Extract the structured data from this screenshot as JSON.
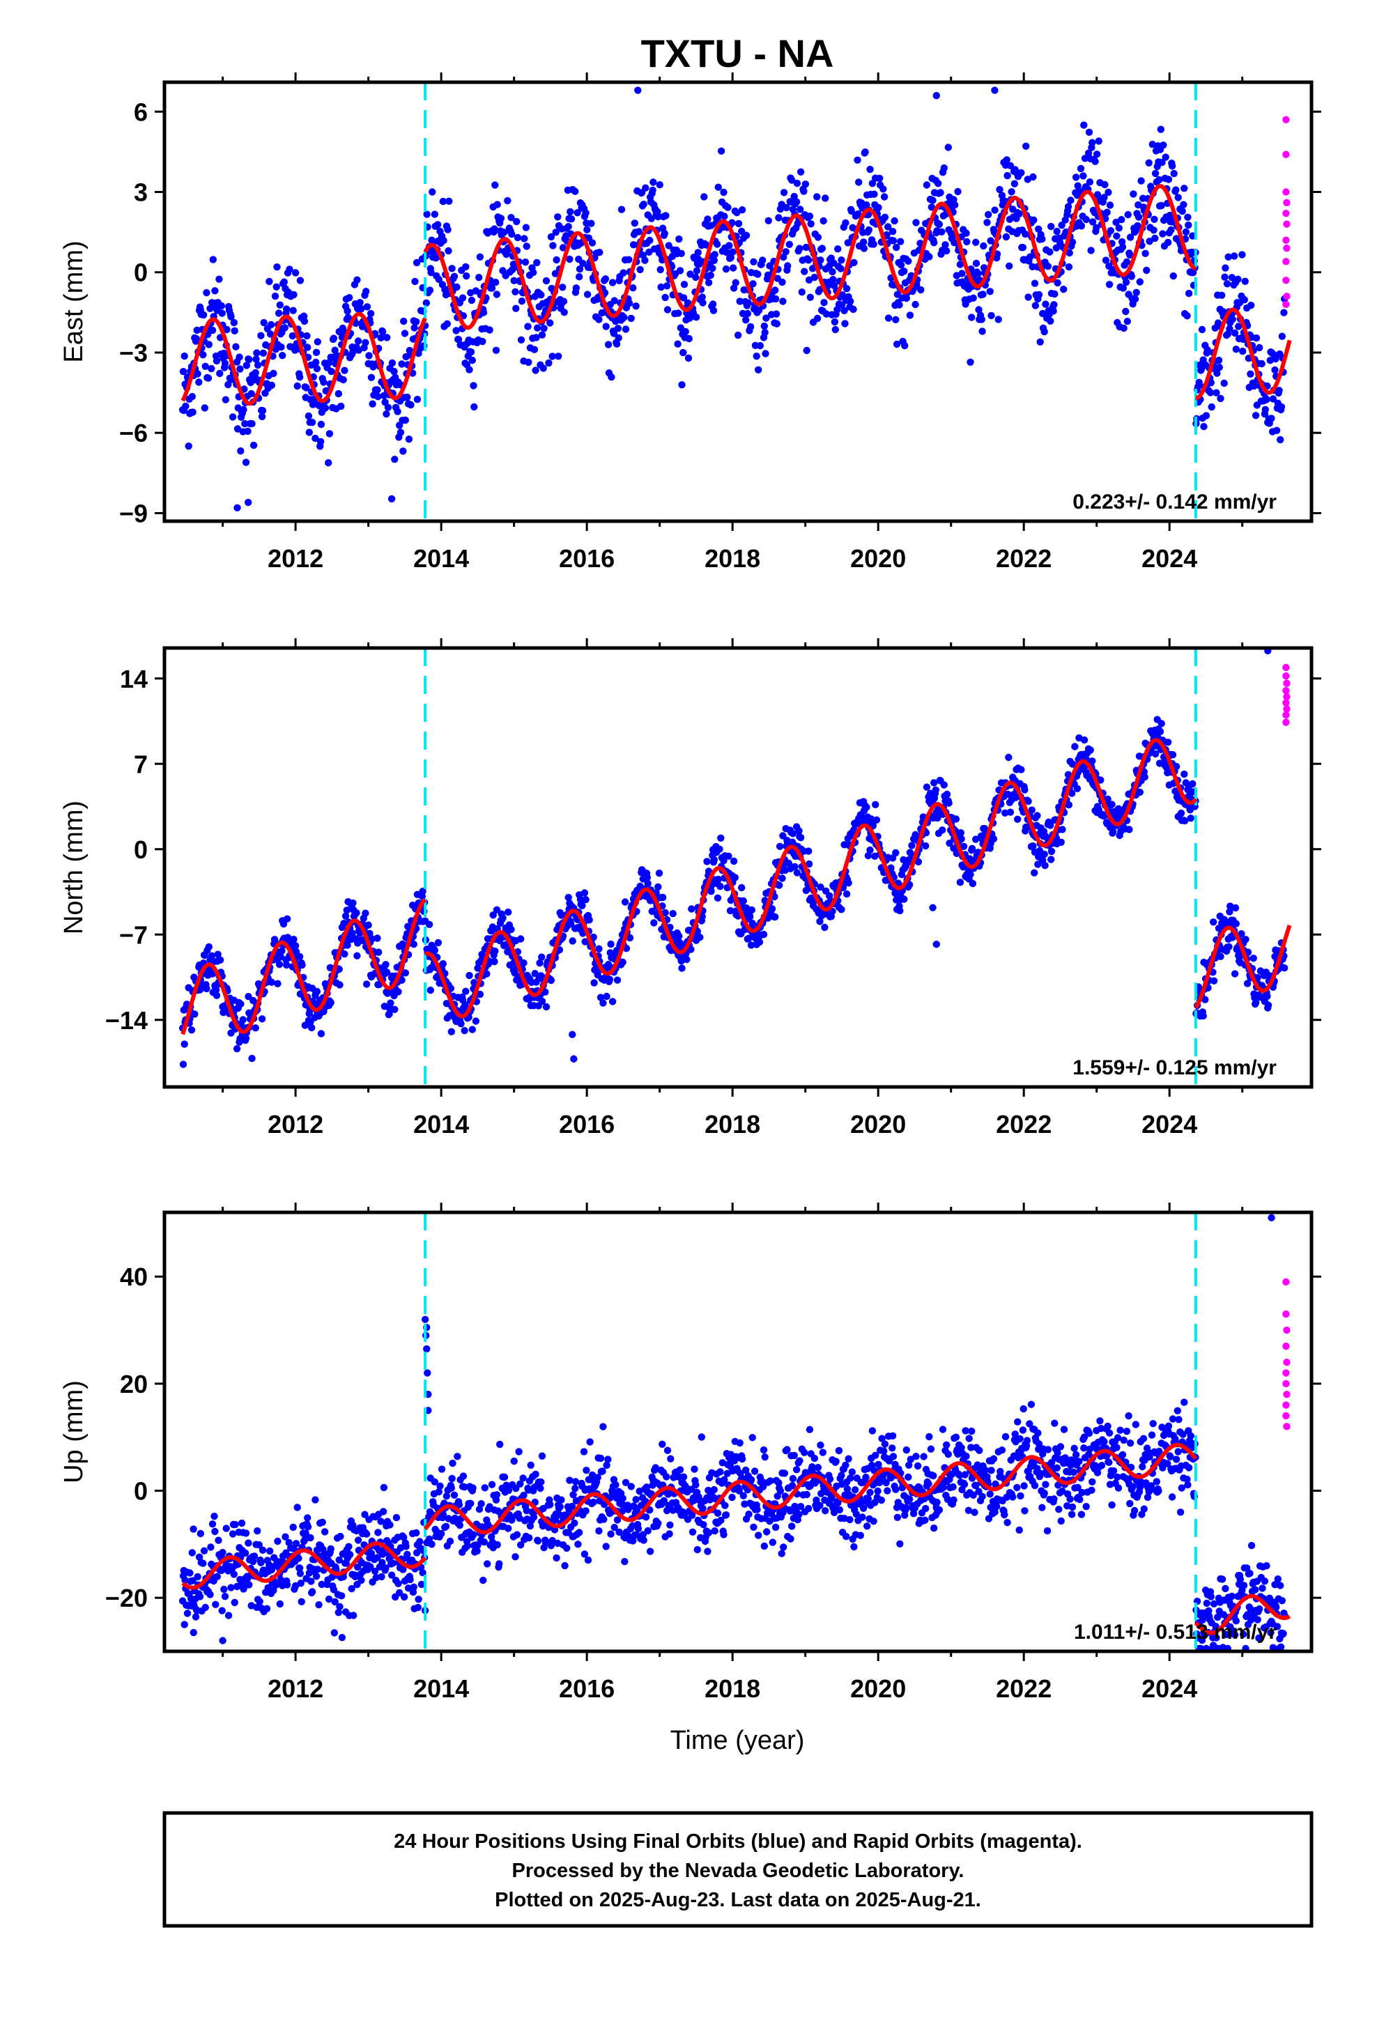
{
  "chart_data": [
    {
      "type": "scatter",
      "title": "TXTU - NA",
      "ylabel": "East (mm)",
      "xlabel": "",
      "xlim": [
        2010.2,
        2025.95
      ],
      "ylim": [
        -9.3,
        7.1
      ],
      "yticks": [
        6,
        3,
        0,
        -3,
        -6,
        -9
      ],
      "xticks": [
        2012,
        2014,
        2016,
        2018,
        2020,
        2022,
        2024
      ],
      "rate_label": "0.223+/- 0.142 mm/yr",
      "break_lines": [
        2013.78,
        2024.36
      ],
      "colors": {
        "final": "#0000ff",
        "rapid": "#ff00ff",
        "model": "#ff0000",
        "break": "#00e5ee"
      },
      "model": {
        "segments": [
          {
            "start": 2010.45,
            "end": 2013.78,
            "offset": -3.4,
            "slope": 0.1,
            "amp": 1.6,
            "phase": 0.62
          },
          {
            "start": 2013.78,
            "end": 2024.36,
            "offset": -0.6,
            "slope": 0.22,
            "amp": 1.6,
            "phase": 0.62
          },
          {
            "start": 2024.36,
            "end": 2025.65,
            "offset": -3.1,
            "slope": 0.2,
            "amp": 1.6,
            "phase": 0.62
          }
        ]
      },
      "series": [
        {
          "name": "Final Orbits",
          "noise": 1.1,
          "outliers": [
            [
              2011.2,
              -8.8
            ],
            [
              2011.35,
              -8.6
            ],
            [
              2016.7,
              6.8
            ],
            [
              2021.6,
              6.8
            ],
            [
              2020.8,
              6.6
            ]
          ]
        },
        {
          "name": "Rapid Orbits",
          "points": [
            [
              2025.6,
              5.7
            ],
            [
              2025.6,
              4.4
            ],
            [
              2025.6,
              3.0
            ],
            [
              2025.61,
              2.6
            ],
            [
              2025.6,
              2.2
            ],
            [
              2025.61,
              1.8
            ],
            [
              2025.6,
              1.2
            ],
            [
              2025.61,
              0.9
            ],
            [
              2025.6,
              0.4
            ],
            [
              2025.6,
              -0.3
            ],
            [
              2025.61,
              -0.9
            ],
            [
              2025.6,
              -1.2
            ]
          ]
        }
      ]
    },
    {
      "type": "scatter",
      "title": "",
      "ylabel": "North (mm)",
      "xlabel": "",
      "xlim": [
        2010.2,
        2025.95
      ],
      "ylim": [
        -19.5,
        16.5
      ],
      "yticks": [
        14,
        7,
        0,
        -7,
        -14
      ],
      "xticks": [
        2012,
        2014,
        2016,
        2018,
        2020,
        2022,
        2024
      ],
      "rate_label": "1.559+/- 0.125 mm/yr",
      "break_lines": [
        2013.78,
        2024.36
      ],
      "colors": {
        "final": "#0000ff",
        "rapid": "#ff00ff",
        "model": "#ff0000",
        "break": "#00e5ee"
      },
      "model": {
        "segments": [
          {
            "start": 2010.45,
            "end": 2013.78,
            "offset": -13.3,
            "slope": 1.8,
            "amp": 3.2,
            "phase": 0.55
          },
          {
            "start": 2013.78,
            "end": 2024.36,
            "offset": -11.6,
            "slope": 1.75,
            "amp": 3.0,
            "phase": 0.55
          },
          {
            "start": 2024.36,
            "end": 2025.65,
            "offset": -10.2,
            "slope": 1.7,
            "amp": 3.0,
            "phase": 0.55
          }
        ]
      },
      "series": [
        {
          "name": "Final Orbits",
          "noise": 1.0,
          "outliers": [
            [
              2015.8,
              -15.2
            ],
            [
              2015.82,
              -17.2
            ],
            [
              2020.75,
              -4.8
            ],
            [
              2020.8,
              -7.8
            ],
            [
              2025.35,
              16.8
            ]
          ]
        },
        {
          "name": "Rapid Orbits",
          "points": [
            [
              2025.6,
              14.9
            ],
            [
              2025.6,
              14.2
            ],
            [
              2025.61,
              13.6
            ],
            [
              2025.6,
              13.0
            ],
            [
              2025.61,
              12.5
            ],
            [
              2025.6,
              12.0
            ],
            [
              2025.61,
              11.5
            ],
            [
              2025.6,
              11.0
            ],
            [
              2025.6,
              10.4
            ]
          ]
        }
      ]
    },
    {
      "type": "scatter",
      "title": "",
      "ylabel": "Up (mm)",
      "xlabel": "Time (year)",
      "xlim": [
        2010.2,
        2025.95
      ],
      "ylim": [
        -30,
        52
      ],
      "yticks": [
        40,
        20,
        0,
        -20
      ],
      "xticks": [
        2012,
        2014,
        2016,
        2018,
        2020,
        2022,
        2024
      ],
      "rate_label": "1.011+/- 0.513 mm/yr",
      "break_lines": [
        2013.78,
        2024.36
      ],
      "colors": {
        "final": "#0000ff",
        "rapid": "#ff00ff",
        "model": "#ff0000",
        "break": "#00e5ee"
      },
      "model": {
        "segments": [
          {
            "start": 2010.45,
            "end": 2013.78,
            "offset": -15.8,
            "slope": 1.3,
            "amp": 2.5,
            "phase": 0.85
          },
          {
            "start": 2013.78,
            "end": 2024.36,
            "offset": -6.0,
            "slope": 1.15,
            "amp": 2.7,
            "phase": 0.85
          },
          {
            "start": 2024.36,
            "end": 2025.65,
            "offset": -24.5,
            "slope": 2.8,
            "amp": 2.7,
            "phase": 0.85
          }
        ]
      },
      "series": [
        {
          "name": "Final Orbits",
          "noise": 4.0,
          "outliers": [
            [
              2013.78,
              32.0
            ],
            [
              2013.8,
              30.5
            ],
            [
              2013.79,
              29.0
            ],
            [
              2013.8,
              26.5
            ],
            [
              2013.81,
              22.0
            ],
            [
              2013.82,
              18.0
            ],
            [
              2013.82,
              15.0
            ],
            [
              2025.4,
              51.0
            ],
            [
              2011.0,
              -28.0
            ],
            [
              2010.6,
              -26.5
            ]
          ]
        },
        {
          "name": "Rapid Orbits",
          "points": [
            [
              2025.6,
              39.0
            ],
            [
              2025.6,
              33.0
            ],
            [
              2025.61,
              30.0
            ],
            [
              2025.6,
              27.0
            ],
            [
              2025.61,
              24.0
            ],
            [
              2025.6,
              22.0
            ],
            [
              2025.6,
              20.0
            ],
            [
              2025.61,
              18.0
            ],
            [
              2025.6,
              16.0
            ],
            [
              2025.6,
              14.0
            ],
            [
              2025.61,
              12.0
            ]
          ]
        }
      ]
    }
  ],
  "footer": {
    "line1": "24 Hour Positions Using Final Orbits (blue) and Rapid Orbits (magenta).",
    "line2": "Processed by the Nevada Geodetic Laboratory.",
    "line3": "Plotted on 2025-Aug-23. Last data on 2025-Aug-21."
  }
}
